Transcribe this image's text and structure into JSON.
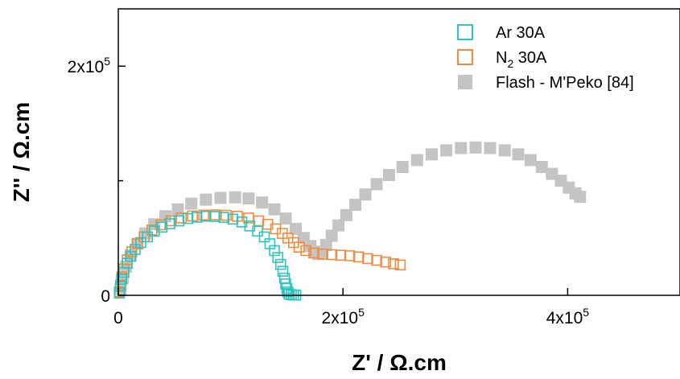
{
  "chart_data": {
    "type": "scatter",
    "xlabel": "Z' / Ω.cm",
    "ylabel": "Z'' / Ω.cm",
    "xlim": [
      0,
      500000
    ],
    "ylim": [
      0,
      250000
    ],
    "x_ticks": [
      {
        "value": 0,
        "mantissa": "0",
        "exp": ""
      },
      {
        "value": 200000,
        "mantissa": "2x10",
        "exp": "5"
      },
      {
        "value": 400000,
        "mantissa": "4x10",
        "exp": "5"
      }
    ],
    "y_ticks": [
      {
        "value": 0,
        "mantissa": "0",
        "exp": ""
      },
      {
        "value": 200000,
        "mantissa": "2x10",
        "exp": "5"
      }
    ],
    "y_minor_ticks": [
      100000
    ],
    "grid": false,
    "legend_position": "top-right",
    "series": [
      {
        "name": "Ar 30A",
        "legend_prefix": "Ar 30A",
        "legend_sub": "",
        "legend_suffix": "",
        "color": "#2ec4c0",
        "marker": "hollow-square",
        "points": [
          [
            1000,
            2000
          ],
          [
            2000,
            8000
          ],
          [
            3000,
            14000
          ],
          [
            5000,
            20000
          ],
          [
            8000,
            28000
          ],
          [
            11000,
            34000
          ],
          [
            15000,
            40000
          ],
          [
            20000,
            46000
          ],
          [
            26000,
            51000
          ],
          [
            32000,
            56000
          ],
          [
            39000,
            59500
          ],
          [
            46000,
            62500
          ],
          [
            54000,
            65000
          ],
          [
            62000,
            67000
          ],
          [
            70000,
            68200
          ],
          [
            78000,
            69000
          ],
          [
            86000,
            68800
          ],
          [
            94000,
            68000
          ],
          [
            102000,
            66500
          ],
          [
            110000,
            64000
          ],
          [
            117000,
            60500
          ],
          [
            124000,
            56000
          ],
          [
            130000,
            51000
          ],
          [
            135000,
            45000
          ],
          [
            139000,
            39000
          ],
          [
            142000,
            33000
          ],
          [
            144500,
            27000
          ],
          [
            146500,
            21000
          ],
          [
            148000,
            15000
          ],
          [
            149000,
            10000
          ],
          [
            150000,
            6000
          ],
          [
            151000,
            3000
          ],
          [
            152000,
            1000
          ],
          [
            154000,
            500
          ],
          [
            156000,
            300
          ],
          [
            158000,
            200
          ]
        ]
      },
      {
        "name": "N2 30A",
        "legend_prefix": "N",
        "legend_sub": "2",
        "legend_suffix": " 30A",
        "color": "#f58a3c",
        "marker": "hollow-square",
        "points": [
          [
            1000,
            3000
          ],
          [
            2000,
            9000
          ],
          [
            3000,
            16000
          ],
          [
            5000,
            23000
          ],
          [
            8000,
            31000
          ],
          [
            12000,
            38000
          ],
          [
            17000,
            45000
          ],
          [
            23000,
            51000
          ],
          [
            30000,
            57000
          ],
          [
            38000,
            61500
          ],
          [
            47000,
            65000
          ],
          [
            56000,
            67500
          ],
          [
            66000,
            69200
          ],
          [
            76000,
            70000
          ],
          [
            86000,
            70200
          ],
          [
            96000,
            69800
          ],
          [
            106000,
            69000
          ],
          [
            116000,
            67500
          ],
          [
            125000,
            65000
          ],
          [
            133000,
            62000
          ],
          [
            140000,
            58000
          ],
          [
            146000,
            54000
          ],
          [
            151000,
            50000
          ],
          [
            156000,
            46000
          ],
          [
            161000,
            42000
          ],
          [
            167000,
            39000
          ],
          [
            174000,
            37000
          ],
          [
            182000,
            36000
          ],
          [
            190000,
            35500
          ],
          [
            198000,
            35000
          ],
          [
            206000,
            34500
          ],
          [
            214000,
            33500
          ],
          [
            222000,
            32000
          ],
          [
            230000,
            30500
          ],
          [
            238000,
            29000
          ],
          [
            245000,
            27500
          ],
          [
            251000,
            26500
          ]
        ]
      },
      {
        "name": "Flash - M'Peko [84]",
        "legend_prefix": "Flash - M'Peko [84]",
        "legend_sub": "",
        "legend_suffix": "",
        "color": "#c4c4c4",
        "marker": "filled-square",
        "points": [
          [
            2000,
            5000
          ],
          [
            4000,
            15000
          ],
          [
            7000,
            25000
          ],
          [
            11000,
            35000
          ],
          [
            17000,
            45000
          ],
          [
            24000,
            54000
          ],
          [
            32000,
            62000
          ],
          [
            42000,
            69000
          ],
          [
            53000,
            75000
          ],
          [
            65000,
            80000
          ],
          [
            78000,
            83500
          ],
          [
            91000,
            85000
          ],
          [
            104000,
            85500
          ],
          [
            116000,
            84500
          ],
          [
            128000,
            81000
          ],
          [
            139000,
            75000
          ],
          [
            149000,
            67000
          ],
          [
            158000,
            58000
          ],
          [
            165000,
            50000
          ],
          [
            171000,
            43000
          ],
          [
            175000,
            38000
          ],
          [
            178000,
            36000
          ],
          [
            181000,
            38000
          ],
          [
            185000,
            44000
          ],
          [
            190000,
            52000
          ],
          [
            196000,
            61000
          ],
          [
            203000,
            70000
          ],
          [
            211000,
            79000
          ],
          [
            220000,
            88000
          ],
          [
            230000,
            97000
          ],
          [
            241000,
            105000
          ],
          [
            253000,
            112000
          ],
          [
            266000,
            118000
          ],
          [
            279000,
            123000
          ],
          [
            292000,
            126500
          ],
          [
            305000,
            128500
          ],
          [
            318000,
            129000
          ],
          [
            331000,
            128500
          ],
          [
            344000,
            126500
          ],
          [
            356000,
            123000
          ],
          [
            367000,
            118000
          ],
          [
            377000,
            112000
          ],
          [
            386000,
            106000
          ],
          [
            394000,
            100000
          ],
          [
            401000,
            94000
          ],
          [
            407000,
            89000
          ],
          [
            411000,
            86000
          ]
        ]
      }
    ]
  }
}
